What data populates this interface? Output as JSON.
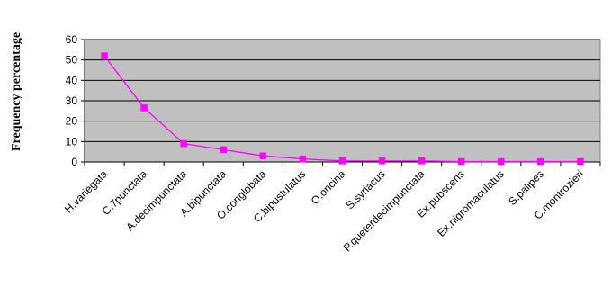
{
  "chart_data": {
    "type": "line",
    "title": "",
    "xlabel": "",
    "ylabel": "Frequency percentage",
    "categories": [
      "H.variegata",
      "C.7punctata",
      "A.decimpunctata",
      "A.bipunctata",
      "O.conglobata",
      "C.bipustulatus",
      "O.oncina",
      "S.syriacus",
      "P.queterdecimpunctata",
      "Ex.pubscens",
      "Ex.nigromaculatus",
      "S.palipes",
      "C.montrozieri"
    ],
    "series": [
      {
        "values": [
          52,
          26.5,
          9,
          6,
          3,
          1.5,
          0.5,
          0.5,
          0.5,
          0.2,
          0.2,
          0.2,
          0.2
        ],
        "color": "#ff00ff",
        "marker": "square"
      }
    ],
    "ylim": [
      0,
      60
    ],
    "yticks": [
      0,
      10,
      20,
      30,
      40,
      50,
      60
    ],
    "grid": true,
    "plot_background": "#c0c0c0",
    "legend": "none"
  }
}
